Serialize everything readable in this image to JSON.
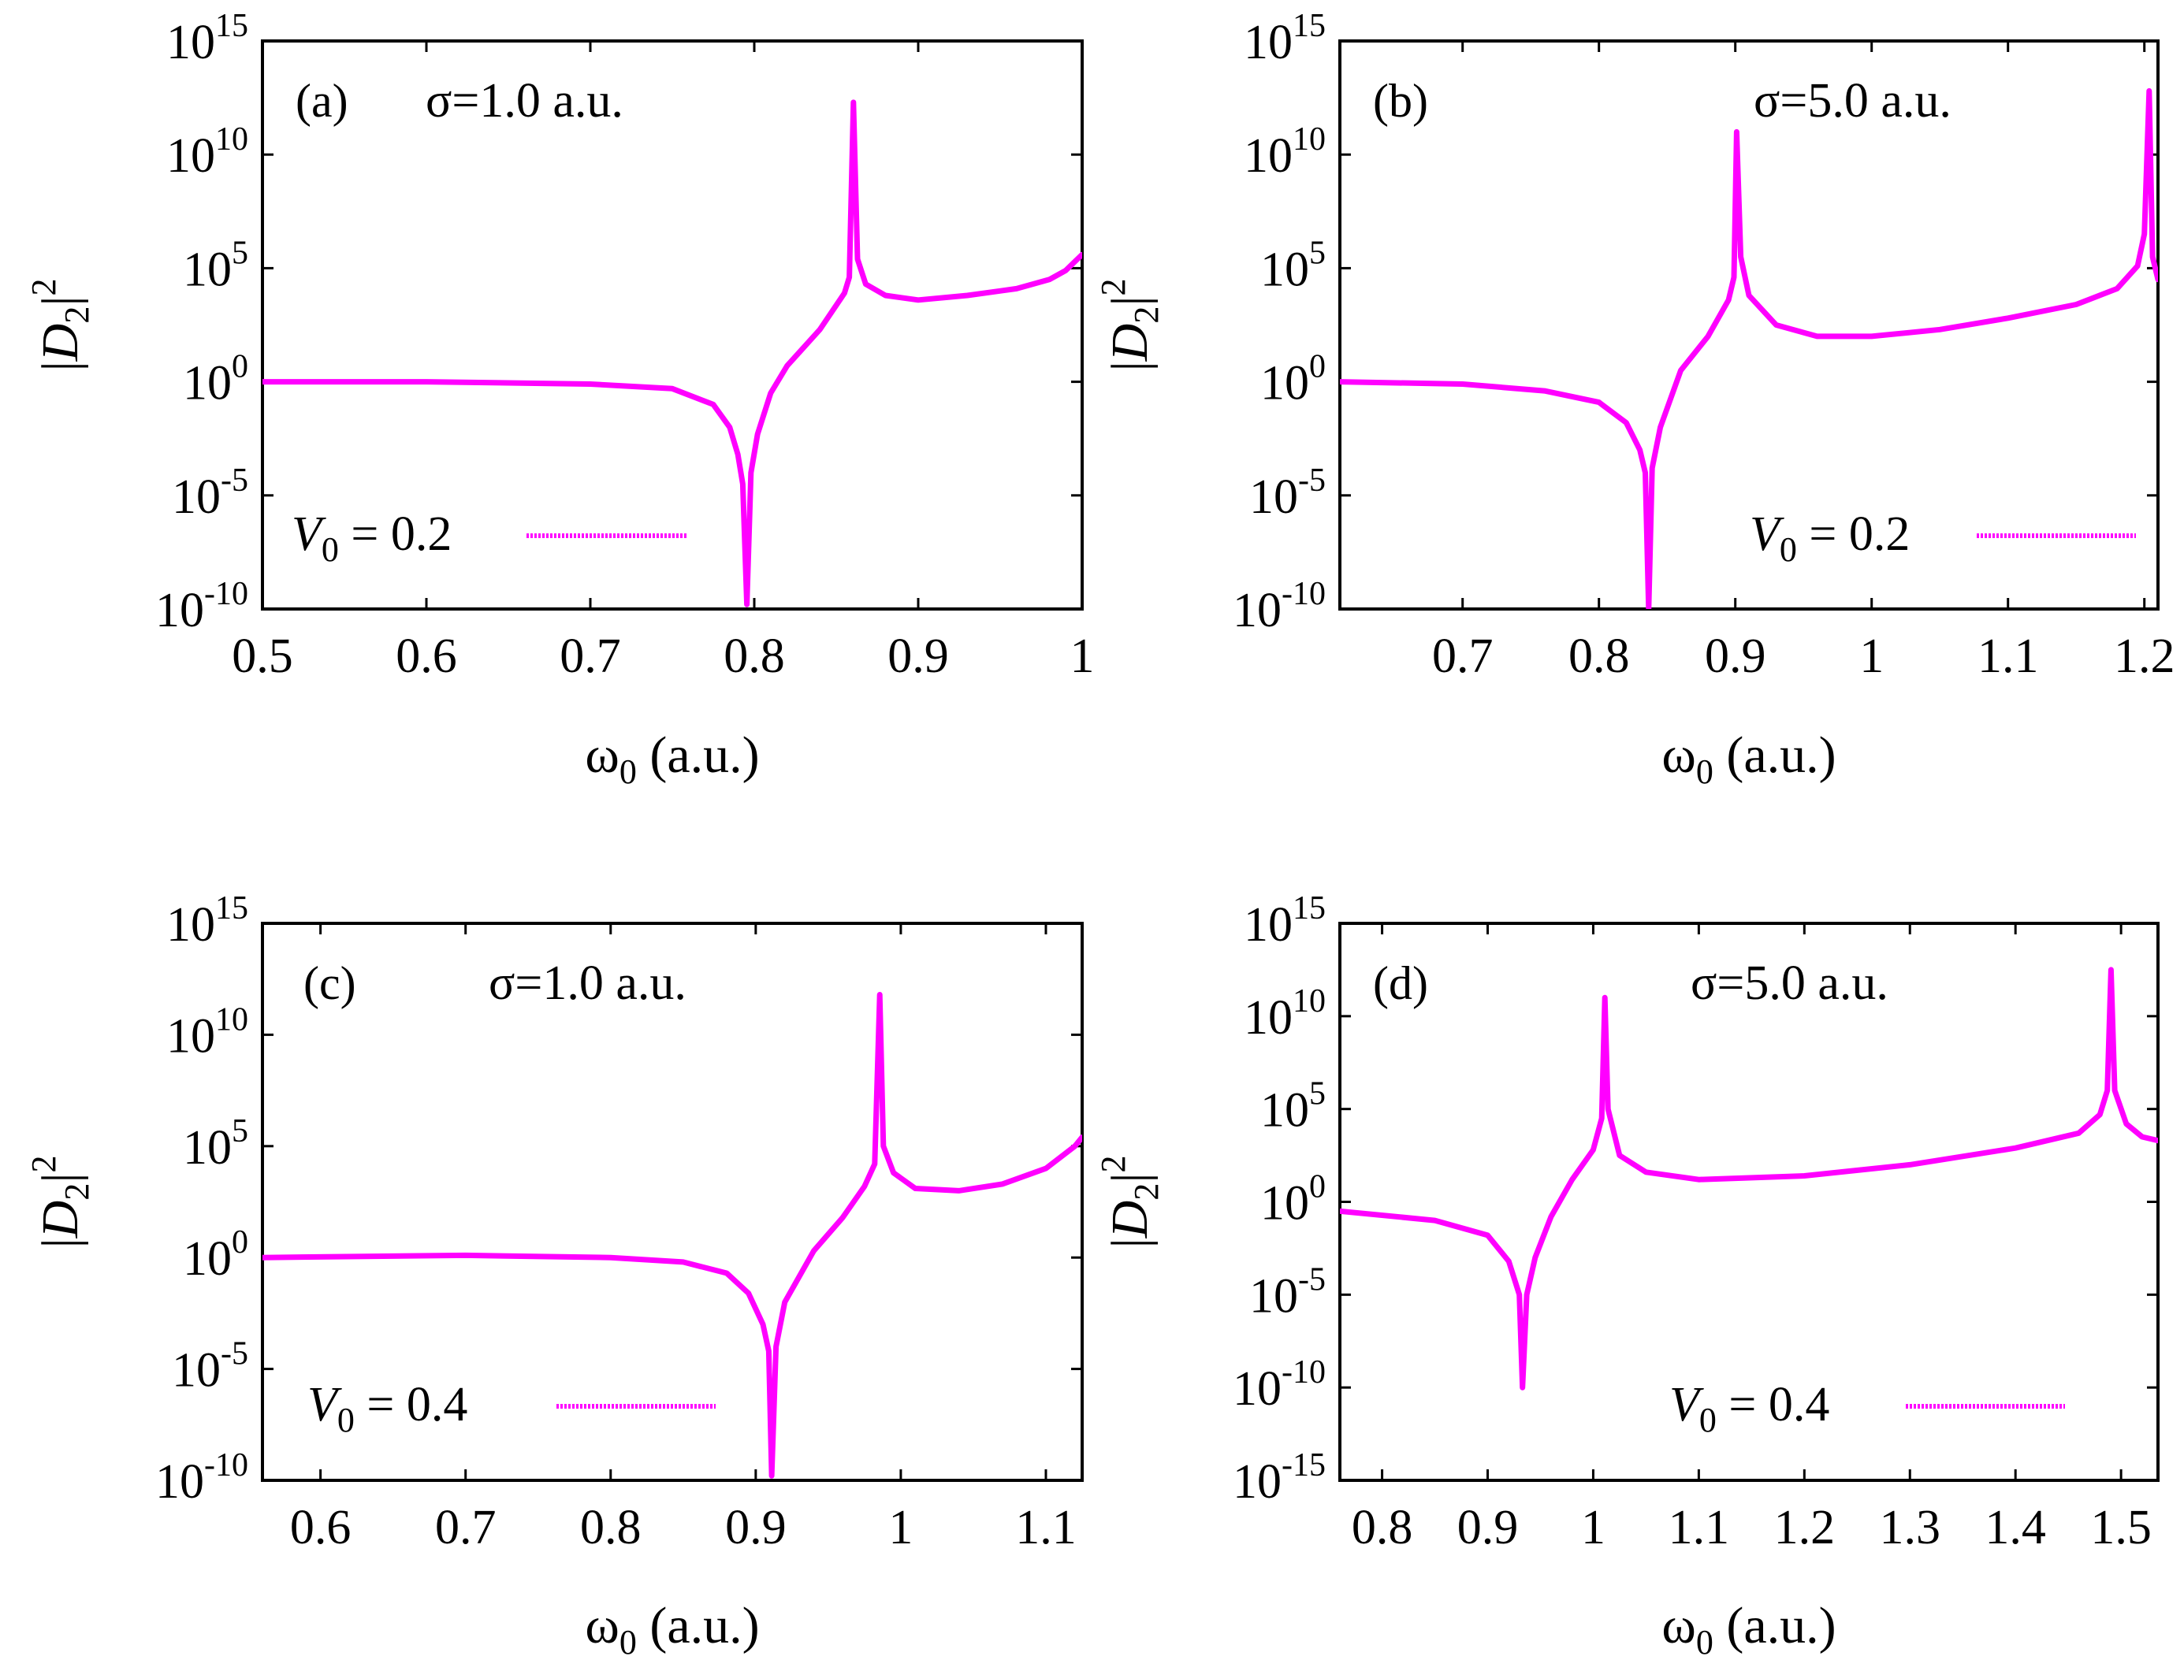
{
  "chart_data": [
    {
      "type": "line",
      "panel_label": "(a)",
      "sigma_label": "σ=1.0 a.u.",
      "legend": {
        "name": "V",
        "sub": "0",
        "value": "= 0.2",
        "position": "bottom-left"
      },
      "xlabel": {
        "symbol": "ω",
        "sub": "0",
        "unit": "(a.u.)"
      },
      "ylabel": {
        "pre": "|",
        "symbol": "D",
        "sub": "2",
        "post": "|",
        "sup": "2"
      },
      "yscale": "log",
      "xlim": [
        0.5,
        1.0
      ],
      "ylim_exp": [
        -10,
        15
      ],
      "xticks": [
        {
          "v": 0.5,
          "label": "0.5"
        },
        {
          "v": 0.6,
          "label": "0.6"
        },
        {
          "v": 0.7,
          "label": "0.7"
        },
        {
          "v": 0.8,
          "label": "0.8"
        },
        {
          "v": 0.9,
          "label": "0.9"
        },
        {
          "v": 1.0,
          "label": "1"
        }
      ],
      "yticks": [
        {
          "e": -10,
          "base": "10",
          "exp": "-10"
        },
        {
          "e": -5,
          "base": "10",
          "exp": "-5"
        },
        {
          "e": 0,
          "base": "10",
          "exp": "0"
        },
        {
          "e": 5,
          "base": "10",
          "exp": "5"
        },
        {
          "e": 10,
          "base": "10",
          "exp": "10"
        },
        {
          "e": 15,
          "base": "10",
          "exp": "15"
        }
      ],
      "series": [
        {
          "name": "V0 = 0.2",
          "color": "#ff00ff",
          "points": [
            [
              0.5,
              0.0
            ],
            [
              0.6,
              0.0
            ],
            [
              0.7,
              -0.1
            ],
            [
              0.75,
              -0.3
            ],
            [
              0.775,
              -1.0
            ],
            [
              0.785,
              -2.0
            ],
            [
              0.79,
              -3.2
            ],
            [
              0.793,
              -4.5
            ],
            [
              0.7955,
              -9.8
            ],
            [
              0.798,
              -4.0
            ],
            [
              0.802,
              -2.3
            ],
            [
              0.81,
              -0.5
            ],
            [
              0.82,
              0.7
            ],
            [
              0.84,
              2.3
            ],
            [
              0.855,
              3.9
            ],
            [
              0.858,
              4.6
            ],
            [
              0.8605,
              12.3
            ],
            [
              0.863,
              5.4
            ],
            [
              0.868,
              4.3
            ],
            [
              0.88,
              3.8
            ],
            [
              0.9,
              3.6
            ],
            [
              0.93,
              3.8
            ],
            [
              0.96,
              4.1
            ],
            [
              0.98,
              4.5
            ],
            [
              0.99,
              4.9
            ],
            [
              1.0,
              5.6
            ]
          ]
        }
      ]
    },
    {
      "type": "line",
      "panel_label": "(b)",
      "sigma_label": "σ=5.0 a.u.",
      "legend": {
        "name": "V",
        "sub": "0",
        "value": "= 0.2",
        "position": "bottom-right"
      },
      "xlabel": {
        "symbol": "ω",
        "sub": "0",
        "unit": "(a.u.)"
      },
      "ylabel": {
        "pre": "|",
        "symbol": "D",
        "sub": "2",
        "post": "|",
        "sup": "2"
      },
      "yscale": "log",
      "xlim": [
        0.61,
        1.21
      ],
      "ylim_exp": [
        -10,
        15
      ],
      "xticks": [
        {
          "v": 0.7,
          "label": "0.7"
        },
        {
          "v": 0.8,
          "label": "0.8"
        },
        {
          "v": 0.9,
          "label": "0.9"
        },
        {
          "v": 1.0,
          "label": "1"
        },
        {
          "v": 1.1,
          "label": "1.1"
        },
        {
          "v": 1.2,
          "label": "1.2"
        }
      ],
      "yticks": [
        {
          "e": -10,
          "base": "10",
          "exp": "-10"
        },
        {
          "e": -5,
          "base": "10",
          "exp": "-5"
        },
        {
          "e": 0,
          "base": "10",
          "exp": "0"
        },
        {
          "e": 5,
          "base": "10",
          "exp": "5"
        },
        {
          "e": 10,
          "base": "10",
          "exp": "10"
        },
        {
          "e": 15,
          "base": "10",
          "exp": "15"
        }
      ],
      "series": [
        {
          "name": "V0 = 0.2",
          "color": "#ff00ff",
          "points": [
            [
              0.61,
              0.0
            ],
            [
              0.7,
              -0.1
            ],
            [
              0.76,
              -0.4
            ],
            [
              0.8,
              -0.9
            ],
            [
              0.82,
              -1.8
            ],
            [
              0.83,
              -3.0
            ],
            [
              0.834,
              -4.0
            ],
            [
              0.8365,
              -10.0
            ],
            [
              0.839,
              -3.8
            ],
            [
              0.845,
              -2.0
            ],
            [
              0.86,
              0.5
            ],
            [
              0.88,
              2.0
            ],
            [
              0.895,
              3.6
            ],
            [
              0.899,
              4.6
            ],
            [
              0.901,
              11.0
            ],
            [
              0.904,
              5.5
            ],
            [
              0.91,
              3.8
            ],
            [
              0.93,
              2.5
            ],
            [
              0.96,
              2.0
            ],
            [
              1.0,
              2.0
            ],
            [
              1.05,
              2.3
            ],
            [
              1.1,
              2.8
            ],
            [
              1.15,
              3.4
            ],
            [
              1.18,
              4.1
            ],
            [
              1.195,
              5.1
            ],
            [
              1.2,
              6.5
            ],
            [
              1.2035,
              12.8
            ],
            [
              1.206,
              5.5
            ],
            [
              1.21,
              4.5
            ]
          ]
        }
      ]
    },
    {
      "type": "line",
      "panel_label": "(c)",
      "sigma_label": "σ=1.0 a.u.",
      "legend": {
        "name": "V",
        "sub": "0",
        "value": "= 0.4",
        "position": "bottom-left"
      },
      "xlabel": {
        "symbol": "ω",
        "sub": "0",
        "unit": "(a.u.)"
      },
      "ylabel": {
        "pre": "|",
        "symbol": "D",
        "sub": "2",
        "post": "|",
        "sup": "2"
      },
      "yscale": "log",
      "xlim": [
        0.56,
        1.125
      ],
      "ylim_exp": [
        -10,
        15
      ],
      "xticks": [
        {
          "v": 0.6,
          "label": "0.6"
        },
        {
          "v": 0.7,
          "label": "0.7"
        },
        {
          "v": 0.8,
          "label": "0.8"
        },
        {
          "v": 0.9,
          "label": "0.9"
        },
        {
          "v": 1.0,
          "label": "1"
        },
        {
          "v": 1.1,
          "label": "1.1"
        }
      ],
      "yticks": [
        {
          "e": -10,
          "base": "10",
          "exp": "-10"
        },
        {
          "e": -5,
          "base": "10",
          "exp": "-5"
        },
        {
          "e": 0,
          "base": "10",
          "exp": "0"
        },
        {
          "e": 5,
          "base": "10",
          "exp": "5"
        },
        {
          "e": 10,
          "base": "10",
          "exp": "10"
        },
        {
          "e": 15,
          "base": "10",
          "exp": "15"
        }
      ],
      "series": [
        {
          "name": "V0 = 0.4",
          "color": "#ff00ff",
          "points": [
            [
              0.56,
              0.0
            ],
            [
              0.7,
              0.1
            ],
            [
              0.8,
              0.0
            ],
            [
              0.85,
              -0.2
            ],
            [
              0.88,
              -0.7
            ],
            [
              0.895,
              -1.6
            ],
            [
              0.905,
              -3.0
            ],
            [
              0.909,
              -4.2
            ],
            [
              0.911,
              -9.8
            ],
            [
              0.914,
              -4.0
            ],
            [
              0.92,
              -2.0
            ],
            [
              0.94,
              0.3
            ],
            [
              0.96,
              1.8
            ],
            [
              0.975,
              3.2
            ],
            [
              0.982,
              4.2
            ],
            [
              0.9855,
              11.8
            ],
            [
              0.988,
              5.0
            ],
            [
              0.995,
              3.8
            ],
            [
              1.01,
              3.1
            ],
            [
              1.04,
              3.0
            ],
            [
              1.07,
              3.3
            ],
            [
              1.1,
              4.0
            ],
            [
              1.12,
              5.0
            ],
            [
              1.125,
              5.4
            ]
          ]
        }
      ]
    },
    {
      "type": "line",
      "panel_label": "(d)",
      "sigma_label": "σ=5.0 a.u.",
      "legend": {
        "name": "V",
        "sub": "0",
        "value": "= 0.4",
        "position": "bottom-right"
      },
      "xlabel": {
        "symbol": "ω",
        "sub": "0",
        "unit": "(a.u.)"
      },
      "ylabel": {
        "pre": "|",
        "symbol": "D",
        "sub": "2",
        "post": "|",
        "sup": "2"
      },
      "yscale": "log",
      "xlim": [
        0.76,
        1.535
      ],
      "ylim_exp": [
        -15,
        15
      ],
      "xticks": [
        {
          "v": 0.8,
          "label": "0.8"
        },
        {
          "v": 0.9,
          "label": "0.9"
        },
        {
          "v": 1.0,
          "label": "1"
        },
        {
          "v": 1.1,
          "label": "1.1"
        },
        {
          "v": 1.2,
          "label": "1.2"
        },
        {
          "v": 1.3,
          "label": "1.3"
        },
        {
          "v": 1.4,
          "label": "1.4"
        },
        {
          "v": 1.5,
          "label": "1.5"
        }
      ],
      "yticks": [
        {
          "e": -15,
          "base": "10",
          "exp": "-15"
        },
        {
          "e": -10,
          "base": "10",
          "exp": "-10"
        },
        {
          "e": -5,
          "base": "10",
          "exp": "-5"
        },
        {
          "e": 0,
          "base": "10",
          "exp": "0"
        },
        {
          "e": 5,
          "base": "10",
          "exp": "5"
        },
        {
          "e": 10,
          "base": "10",
          "exp": "10"
        },
        {
          "e": 15,
          "base": "10",
          "exp": "15"
        }
      ],
      "series": [
        {
          "name": "V0 = 0.4",
          "color": "#ff00ff",
          "points": [
            [
              0.76,
              -0.5
            ],
            [
              0.85,
              -1.0
            ],
            [
              0.9,
              -1.8
            ],
            [
              0.92,
              -3.2
            ],
            [
              0.93,
              -5.0
            ],
            [
              0.933,
              -10.0
            ],
            [
              0.937,
              -5.0
            ],
            [
              0.945,
              -3.0
            ],
            [
              0.96,
              -0.8
            ],
            [
              0.98,
              1.2
            ],
            [
              1.0,
              2.8
            ],
            [
              1.008,
              4.5
            ],
            [
              1.011,
              11.0
            ],
            [
              1.014,
              5.0
            ],
            [
              1.025,
              2.5
            ],
            [
              1.05,
              1.6
            ],
            [
              1.1,
              1.2
            ],
            [
              1.2,
              1.4
            ],
            [
              1.3,
              2.0
            ],
            [
              1.4,
              2.9
            ],
            [
              1.46,
              3.7
            ],
            [
              1.48,
              4.7
            ],
            [
              1.487,
              6.0
            ],
            [
              1.4905,
              12.5
            ],
            [
              1.494,
              6.0
            ],
            [
              1.505,
              4.2
            ],
            [
              1.52,
              3.5
            ],
            [
              1.535,
              3.3
            ]
          ]
        }
      ]
    }
  ]
}
